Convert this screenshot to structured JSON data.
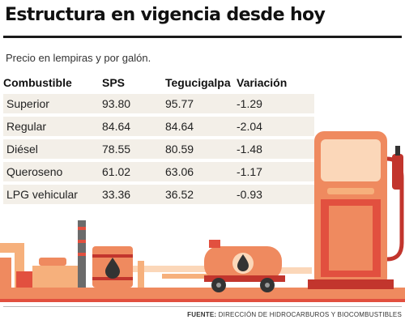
{
  "title": "Estructura en vigencia desde hoy",
  "subtitle": "Precio en lempiras y por galón.",
  "chart_data": {
    "type": "table",
    "columns": [
      "Combustible",
      "SPS",
      "Tegucigalpa",
      "Variación"
    ],
    "rows": [
      {
        "name": "Superior",
        "sps": "93.80",
        "teg": "95.77",
        "var": "-1.29"
      },
      {
        "name": "Regular",
        "sps": "84.64",
        "teg": "84.64",
        "var": "-2.04"
      },
      {
        "name": "Diésel",
        "sps": "78.55",
        "teg": "80.59",
        "var": "-1.48"
      },
      {
        "name": "Queroseno",
        "sps": "61.02",
        "teg": "63.06",
        "var": "-1.17"
      },
      {
        "name": "LPG vehicular",
        "sps": "33.36",
        "teg": "36.52",
        "var": "-0.93"
      }
    ]
  },
  "source": {
    "label": "FUENTE:",
    "text": "DIRECCIÓN DE HIDROCARBUROS Y BIOCOMBUSTIBLES"
  },
  "colors": {
    "orange_light": "#f6b07c",
    "orange": "#ef8a5f",
    "red": "#e2503f",
    "dark_red": "#c2352d",
    "pale": "#fbd7b9",
    "row_bg": "#f3efe8"
  }
}
